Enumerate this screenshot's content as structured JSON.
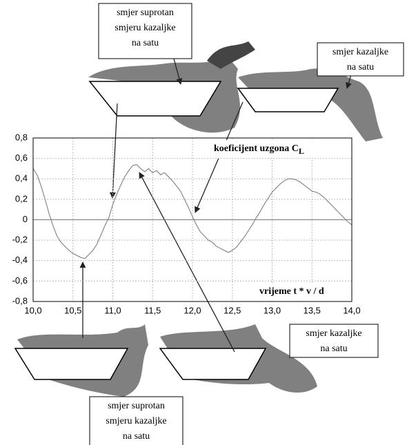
{
  "chart_data": {
    "type": "line",
    "ylabel": "koeficijent uzgona C",
    "ylabel_subscript": "L",
    "xlabel": "vrijeme t * v / d",
    "xlim": [
      10.0,
      14.0
    ],
    "ylim": [
      -0.8,
      0.8
    ],
    "xticks": [
      {
        "value": 10.0,
        "label": "10,0"
      },
      {
        "value": 10.5,
        "label": "10,5"
      },
      {
        "value": 11.0,
        "label": "11,0"
      },
      {
        "value": 11.5,
        "label": "11,5"
      },
      {
        "value": 12.0,
        "label": "12,0"
      },
      {
        "value": 12.5,
        "label": "12,5"
      },
      {
        "value": 13.0,
        "label": "13,0"
      },
      {
        "value": 13.5,
        "label": "13,5"
      },
      {
        "value": 14.0,
        "label": "14,0"
      }
    ],
    "yticks": [
      {
        "value": 0.8,
        "label": "0,8"
      },
      {
        "value": 0.6,
        "label": "0,6"
      },
      {
        "value": 0.4,
        "label": "0,4"
      },
      {
        "value": 0.2,
        "label": "0,2"
      },
      0,
      {
        "value": -0.2,
        "label": "-0,2"
      },
      {
        "value": -0.4,
        "label": "-0,4"
      },
      {
        "value": -0.6,
        "label": "-0,6"
      },
      {
        "value": -0.8,
        "label": "-0,8"
      }
    ],
    "grid": true,
    "color": "#888888",
    "x": [
      10.0,
      10.05,
      10.1,
      10.15,
      10.2,
      10.25,
      10.3,
      10.35,
      10.4,
      10.45,
      10.5,
      10.55,
      10.6,
      10.65,
      10.7,
      10.75,
      10.8,
      10.85,
      10.9,
      10.95,
      11.0,
      11.05,
      11.1,
      11.15,
      11.2,
      11.25,
      11.3,
      11.35,
      11.4,
      11.45,
      11.5,
      11.55,
      11.6,
      11.65,
      11.7,
      11.75,
      11.8,
      11.85,
      11.9,
      11.95,
      12.0,
      12.05,
      12.1,
      12.15,
      12.2,
      12.25,
      12.3,
      12.35,
      12.4,
      12.45,
      12.5,
      12.55,
      12.6,
      12.65,
      12.7,
      12.75,
      12.8,
      12.85,
      12.9,
      12.95,
      13.0,
      13.05,
      13.1,
      13.15,
      13.2,
      13.25,
      13.3,
      13.35,
      13.4,
      13.45,
      13.5,
      13.55,
      13.6,
      13.65,
      13.7,
      13.75,
      13.8,
      13.85,
      13.9,
      13.95,
      14.0
    ],
    "values": [
      0.5,
      0.44,
      0.33,
      0.2,
      0.06,
      -0.06,
      -0.16,
      -0.22,
      -0.26,
      -0.3,
      -0.33,
      -0.35,
      -0.37,
      -0.38,
      -0.34,
      -0.3,
      -0.24,
      -0.15,
      -0.06,
      0.02,
      0.15,
      0.25,
      0.34,
      0.42,
      0.48,
      0.53,
      0.54,
      0.5,
      0.47,
      0.5,
      0.46,
      0.48,
      0.44,
      0.46,
      0.42,
      0.38,
      0.33,
      0.28,
      0.2,
      0.12,
      0.03,
      -0.05,
      -0.12,
      -0.16,
      -0.2,
      -0.22,
      -0.26,
      -0.28,
      -0.3,
      -0.32,
      -0.3,
      -0.27,
      -0.22,
      -0.17,
      -0.11,
      -0.05,
      0.02,
      0.08,
      0.15,
      0.21,
      0.27,
      0.31,
      0.35,
      0.38,
      0.4,
      0.4,
      0.39,
      0.37,
      0.34,
      0.31,
      0.28,
      0.27,
      0.25,
      0.22,
      0.18,
      0.14,
      0.1,
      0.06,
      0.02,
      -0.02,
      -0.05
    ],
    "annotations": [
      {
        "lines": [
          "smjer suprotan",
          "smjeru kazaljke",
          "na satu"
        ]
      },
      {
        "lines": [
          "smjer  kazaljke",
          "na satu"
        ]
      },
      {
        "lines": [
          "smjer  kazaljke",
          "na satu"
        ]
      },
      {
        "lines": [
          "smjer suprotan",
          "smjeru kazaljke",
          "na satu"
        ]
      }
    ]
  }
}
